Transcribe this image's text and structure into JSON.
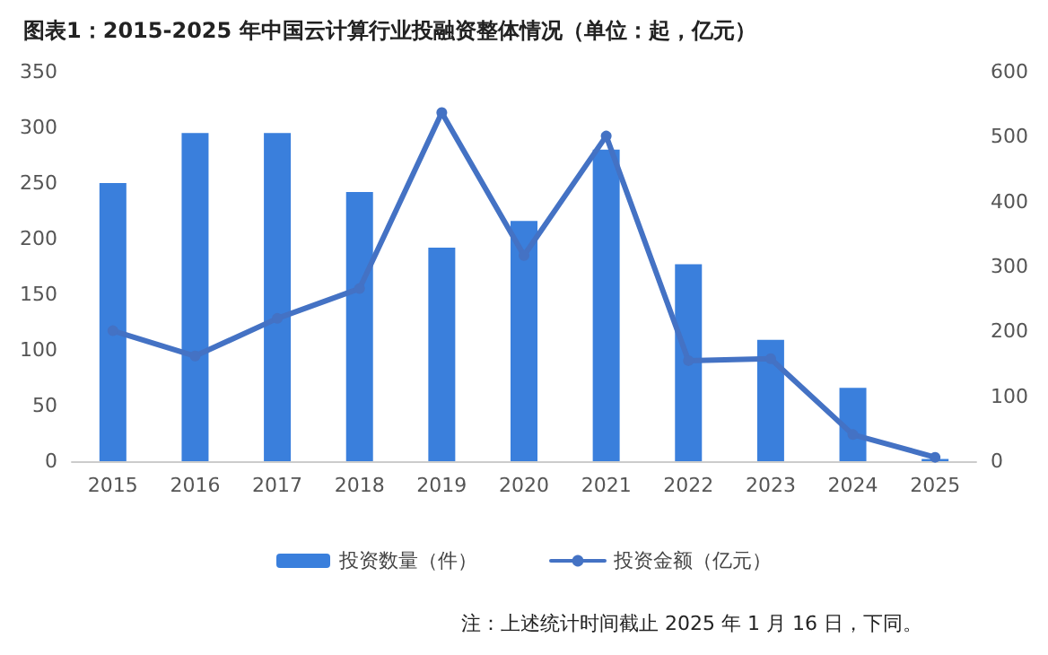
{
  "chart_data": {
    "type": "bar",
    "title": "图表1：2015-2025 年中国云计算行业投融资整体情况（单位：起，亿元）",
    "categories": [
      "2015",
      "2016",
      "2017",
      "2018",
      "2019",
      "2020",
      "2021",
      "2022",
      "2023",
      "2024",
      "2025"
    ],
    "series": [
      {
        "name": "投资数量（件）",
        "color": "#3a7fdc",
        "values": [
          250,
          295,
          295,
          242,
          192,
          216,
          280,
          177,
          109,
          66,
          2
        ]
      },
      {
        "name": "投资金额（亿元）",
        "type": "line",
        "axis": "y2",
        "color": "#4472c4",
        "values": [
          201,
          162,
          220,
          266,
          537,
          317,
          501,
          155,
          158,
          41,
          6
        ]
      }
    ],
    "ylim": [
      0,
      350
    ],
    "yticks": [
      0,
      50,
      100,
      150,
      200,
      250,
      300,
      350
    ],
    "y2lim": [
      0,
      600
    ],
    "y2ticks": [
      0,
      100,
      200,
      300,
      400,
      500,
      600
    ],
    "grid": false,
    "legend": "bottom",
    "marker": "circle",
    "line_style": "solid",
    "annotations": [
      "注：上述统计时间截止 2025 年 1 月 16 日，下同。"
    ]
  }
}
